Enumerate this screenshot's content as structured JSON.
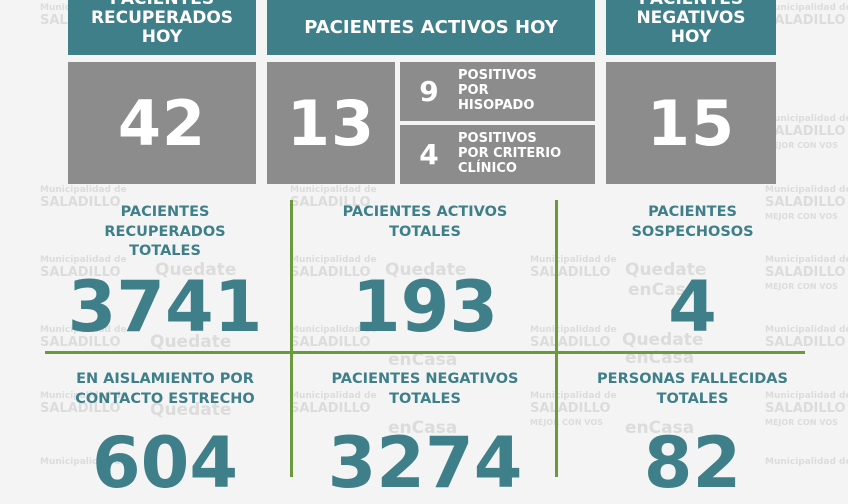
{
  "header": {
    "recuperados_hoy": [
      "PACIENTES",
      "RECUPERADOS",
      "HOY"
    ],
    "activos_hoy": "PACIENTES ACTIVOS HOY",
    "negativos_hoy": [
      "PACIENTES",
      "NEGATIVOS",
      "HOY"
    ]
  },
  "today": {
    "recuperados": "42",
    "activos": "13",
    "negativos": "15",
    "hisopado_count": "9",
    "hisopado_label": [
      "POSITIVOS",
      "POR",
      "HISOPADO"
    ],
    "clinico_count": "4",
    "clinico_label": [
      "POSITIVOS",
      "POR CRITERIO",
      "CLÍNICO"
    ]
  },
  "totals": {
    "recuperados_label": [
      "PACIENTES",
      "RECUPERADOS",
      "TOTALES"
    ],
    "recuperados_value": "3741",
    "activos_label": [
      "PACIENTES ACTIVOS",
      "TOTALES"
    ],
    "activos_value": "193",
    "sospechosos_label": [
      "PACIENTES",
      "SOSPECHOSOS"
    ],
    "sospechosos_value": "4",
    "aislamiento_label": [
      "EN AISLAMIENTO POR",
      "CONTACTO ESTRECHO"
    ],
    "aislamiento_value": "604",
    "negativos_label": [
      "PACIENTES NEGATIVOS",
      "TOTALES"
    ],
    "negativos_value": "3274",
    "fallecidas_label": [
      "PERSONAS FALLECIDAS",
      "TOTALES"
    ],
    "fallecidas_value": "82"
  },
  "watermark": {
    "municipio": "Municipalidad de",
    "city": "SALADILLO",
    "slogan": "MEJOR CON VOS",
    "hashtag_1": "Quedate",
    "hashtag_2": "enCasa"
  },
  "colors": {
    "teal": "#3f7f8a",
    "gray": "#8c8c8c",
    "green": "#6a9a3c"
  }
}
